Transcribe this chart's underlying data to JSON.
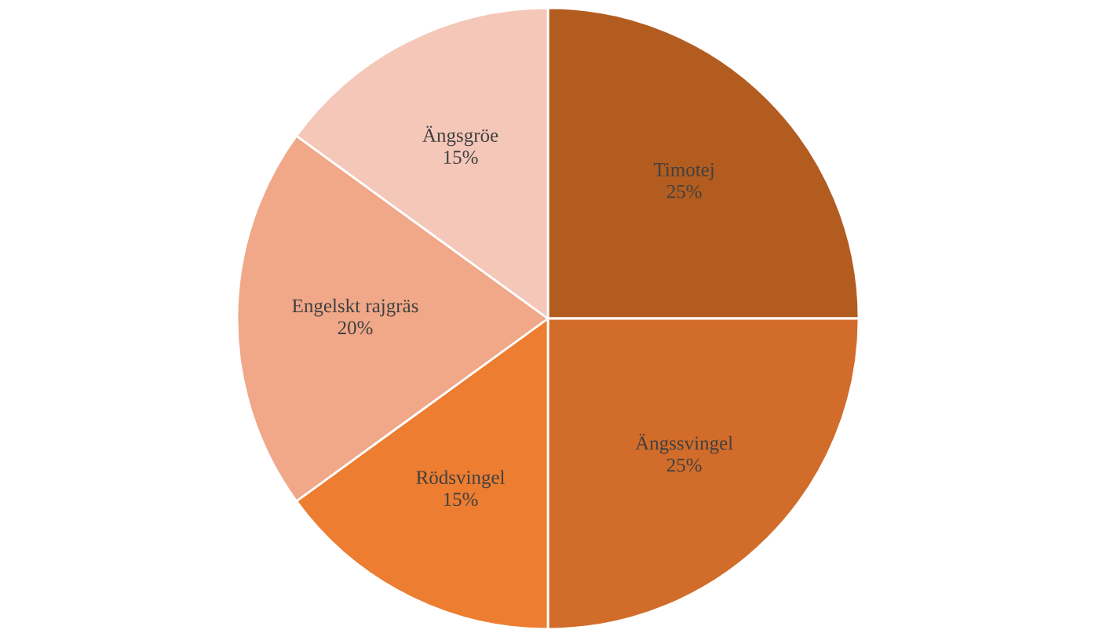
{
  "chart_data": {
    "type": "pie",
    "categories": [
      "Timotej",
      "Ängssvingel",
      "Rödsvingel",
      "Engelskt rajgräs",
      "Ängsgröe"
    ],
    "values": [
      25,
      25,
      15,
      20,
      15
    ],
    "value_labels": [
      "25%",
      "25%",
      "15%",
      "20%",
      "15%"
    ],
    "colors": [
      "#b35c1f",
      "#d26c2a",
      "#ed7d31",
      "#f0a889",
      "#f4c7b9"
    ]
  }
}
